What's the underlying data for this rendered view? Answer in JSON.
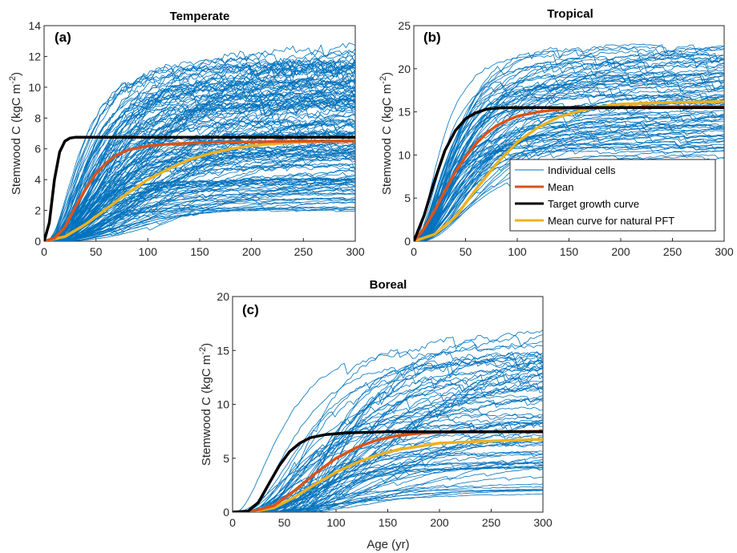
{
  "colors": {
    "individual": "#0072BD",
    "mean": "#D95319",
    "target": "#000000",
    "natural": "#EDB120"
  },
  "legend": {
    "individual": "Individual cells",
    "mean": "Mean",
    "target": "Target growth curve",
    "natural": "Mean curve for natural PFT"
  },
  "chart_data": [
    {
      "type": "line",
      "panel": "(a)",
      "title": "Temperate",
      "xlabel": "",
      "ylabel": "Stemwood C (kgC m-2)",
      "xlim": [
        0,
        300
      ],
      "ylim": [
        0,
        14
      ],
      "xticks": [
        0,
        50,
        100,
        150,
        200,
        250,
        300
      ],
      "yticks": [
        0,
        2,
        4,
        6,
        8,
        10,
        12,
        14
      ],
      "individual_cells": {
        "count": 150,
        "final_range": [
          2,
          12.4
        ],
        "note_visible": "many thin blue lines"
      },
      "series": [
        {
          "name": "Mean",
          "x": [
            0,
            10,
            20,
            30,
            40,
            50,
            60,
            70,
            80,
            100,
            120,
            150,
            200,
            250,
            300
          ],
          "values": [
            0,
            0.2,
            0.9,
            2.2,
            3.4,
            4.4,
            5.1,
            5.6,
            5.9,
            6.2,
            6.3,
            6.4,
            6.45,
            6.5,
            6.5
          ]
        },
        {
          "name": "Target growth curve",
          "x": [
            0,
            5,
            10,
            15,
            20,
            25,
            30,
            40,
            50,
            100,
            150,
            200,
            250,
            300
          ],
          "values": [
            0,
            1.2,
            4.0,
            5.8,
            6.5,
            6.7,
            6.75,
            6.75,
            6.75,
            6.75,
            6.75,
            6.75,
            6.75,
            6.75
          ]
        },
        {
          "name": "Mean curve for natural PFT",
          "x": [
            0,
            20,
            40,
            60,
            80,
            100,
            120,
            140,
            160,
            180,
            200,
            225,
            250,
            275,
            300
          ],
          "values": [
            0,
            0.3,
            1.1,
            2.1,
            3.1,
            4.0,
            4.7,
            5.3,
            5.7,
            6.0,
            6.2,
            6.35,
            6.45,
            6.5,
            6.55
          ]
        }
      ]
    },
    {
      "type": "line",
      "panel": "(b)",
      "title": "Tropical",
      "xlabel": "",
      "ylabel": "Stemwood C (kgC m-2)",
      "xlim": [
        0,
        300
      ],
      "ylim": [
        0,
        25
      ],
      "xticks": [
        0,
        50,
        100,
        150,
        200,
        250,
        300
      ],
      "yticks": [
        0,
        5,
        10,
        15,
        20,
        25
      ],
      "individual_cells": {
        "count": 80,
        "final_range": [
          9.5,
          23
        ]
      },
      "series": [
        {
          "name": "Mean",
          "x": [
            0,
            10,
            20,
            30,
            40,
            50,
            60,
            70,
            80,
            90,
            100,
            120,
            150,
            200,
            250,
            300
          ],
          "values": [
            0,
            1.5,
            3.5,
            5.8,
            8.0,
            9.8,
            11.3,
            12.5,
            13.4,
            14.0,
            14.5,
            15.0,
            15.4,
            15.5,
            15.6,
            15.6
          ]
        },
        {
          "name": "Target growth curve",
          "x": [
            0,
            10,
            20,
            30,
            40,
            50,
            60,
            70,
            80,
            100,
            150,
            200,
            250,
            300
          ],
          "values": [
            0,
            3.0,
            7.0,
            10.5,
            12.8,
            14.2,
            14.9,
            15.3,
            15.45,
            15.5,
            15.5,
            15.5,
            15.5,
            15.5
          ]
        },
        {
          "name": "Mean curve for natural PFT",
          "x": [
            0,
            20,
            40,
            60,
            80,
            100,
            120,
            140,
            160,
            180,
            200,
            250,
            300
          ],
          "values": [
            0,
            0.8,
            2.8,
            6.0,
            9.0,
            11.5,
            13.2,
            14.4,
            15.1,
            15.6,
            15.9,
            16.1,
            16.2
          ]
        }
      ]
    },
    {
      "type": "line",
      "panel": "(c)",
      "title": "Boreal",
      "xlabel": "Age (yr)",
      "ylabel": "Stemwood C (kgC m-2)",
      "xlim": [
        0,
        300
      ],
      "ylim": [
        0,
        20
      ],
      "xticks": [
        0,
        50,
        100,
        150,
        200,
        250,
        300
      ],
      "yticks": [
        0,
        5,
        10,
        15,
        20
      ],
      "individual_cells": {
        "count": 80,
        "final_range": [
          1.5,
          16.3
        ]
      },
      "series": [
        {
          "name": "Mean",
          "x": [
            0,
            20,
            40,
            60,
            80,
            100,
            120,
            140,
            160,
            180,
            200,
            250,
            300
          ],
          "values": [
            0,
            0.1,
            0.6,
            2.0,
            3.6,
            5.0,
            6.0,
            6.7,
            7.1,
            7.3,
            7.4,
            7.45,
            7.5
          ]
        },
        {
          "name": "Target growth curve",
          "x": [
            0,
            15,
            25,
            35,
            45,
            55,
            65,
            75,
            90,
            110,
            150,
            200,
            250,
            300
          ],
          "values": [
            0,
            0.1,
            0.9,
            2.6,
            4.3,
            5.6,
            6.4,
            6.9,
            7.2,
            7.35,
            7.45,
            7.45,
            7.45,
            7.45
          ]
        },
        {
          "name": "Mean curve for natural PFT",
          "x": [
            0,
            20,
            40,
            60,
            80,
            100,
            120,
            140,
            160,
            180,
            200,
            250,
            300
          ],
          "values": [
            0,
            0.05,
            0.4,
            1.4,
            2.6,
            3.7,
            4.6,
            5.3,
            5.8,
            6.1,
            6.4,
            6.6,
            6.75
          ]
        }
      ]
    }
  ]
}
